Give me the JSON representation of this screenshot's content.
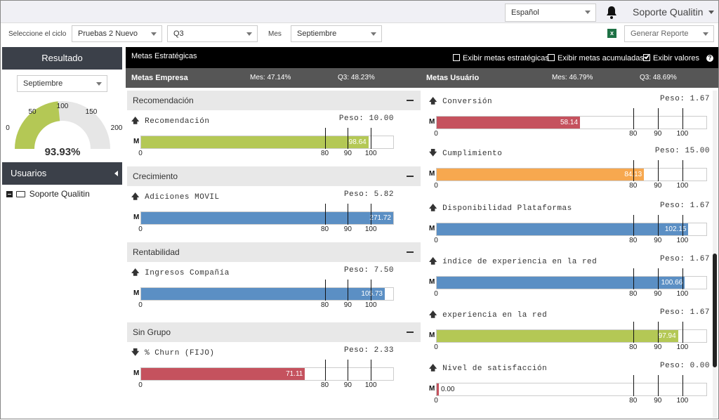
{
  "header": {
    "language": "Español",
    "user": "Soporte Qualitin"
  },
  "filters": {
    "cycle_label": "Seleccione el ciclo",
    "cycle": "Pruebas 2 Nuevo",
    "quarter": "Q3",
    "month_label": "Mes",
    "month": "Septiembre",
    "report": "Generar Reporte"
  },
  "sidebar": {
    "result_title": "Resultado",
    "month": "Septiembre",
    "gauge": {
      "value": 93.93,
      "max": 200,
      "value_label": "93.93%",
      "ticks": [
        "0",
        "50",
        "100",
        "150",
        "200"
      ]
    },
    "users_title": "Usuarios",
    "user_item": "Soporte Qualitin"
  },
  "colors": {
    "green": "#b4c855",
    "blue": "#5b8fc4",
    "red": "#c5525e",
    "orange": "#f7a84f"
  },
  "toolbar": {
    "title": "Metas Estratégicas",
    "opt1": "Exibir metas estratégicas",
    "opt2": "Exibir metas acumuladas",
    "opt3": "Exibir valores",
    "opt1_checked": false,
    "opt2_checked": false,
    "opt3_checked": true
  },
  "summary": {
    "empresa": "Metas Empresa",
    "empresa_mes": "Mes: 47.14%",
    "empresa_q": "Q3: 48.23%",
    "usuario": "Metas Usuário",
    "usuario_mes": "Mes: 46.79%",
    "usuario_q": "Q3: 48.69%"
  },
  "axis": {
    "m": "M",
    "t0": "0",
    "t80": "80",
    "t90": "90",
    "t100": "100"
  },
  "left": [
    {
      "group": "Recomendación",
      "title": "Recomendación",
      "arrow": "up",
      "peso": "Peso: 10.00",
      "value": 98.64,
      "value_label": "98.64",
      "color": "green"
    },
    {
      "group": "Crecimiento",
      "title": "Adiciones MOVIL",
      "arrow": "up",
      "peso": "Peso: 5.82",
      "value": 271.72,
      "value_label": "271.72",
      "color": "blue"
    },
    {
      "group": "Rentabilidad",
      "title": "Ingresos Compañía",
      "arrow": "up",
      "peso": "Peso: 7.50",
      "value": 105.73,
      "value_label": "105.73",
      "color": "blue"
    },
    {
      "group": "Sin Grupo",
      "title": "% Churn (FIJO)",
      "arrow": "down",
      "peso": "Peso: 2.33",
      "value": 71.11,
      "value_label": "71.11",
      "color": "red"
    }
  ],
  "right": [
    {
      "title": "Conversión",
      "arrow": "up",
      "peso": "Peso: 1.67",
      "value": 58.14,
      "value_label": "58.14",
      "color": "red"
    },
    {
      "title": "Cumplimiento",
      "arrow": "down",
      "peso": "Peso: 15.00",
      "value": 84.13,
      "value_label": "84.13",
      "color": "orange"
    },
    {
      "title": "Disponibilidad Plataformas",
      "arrow": "up",
      "peso": "Peso: 1.67",
      "value": 102.15,
      "value_label": "102.15",
      "color": "blue"
    },
    {
      "title": "índice de experiencia en la red",
      "arrow": "up",
      "peso": "Peso: 1.67",
      "value": 100.66,
      "value_label": "100.66",
      "color": "blue"
    },
    {
      "title": "experiencia en la red",
      "arrow": "up",
      "peso": "Peso: 1.67",
      "value": 97.94,
      "value_label": "97.94",
      "color": "green"
    },
    {
      "title": "Nivel de satisfacción",
      "arrow": "up",
      "peso": "Peso: 0.00",
      "value": 0.0,
      "value_label": "0.00",
      "color": "red"
    }
  ]
}
